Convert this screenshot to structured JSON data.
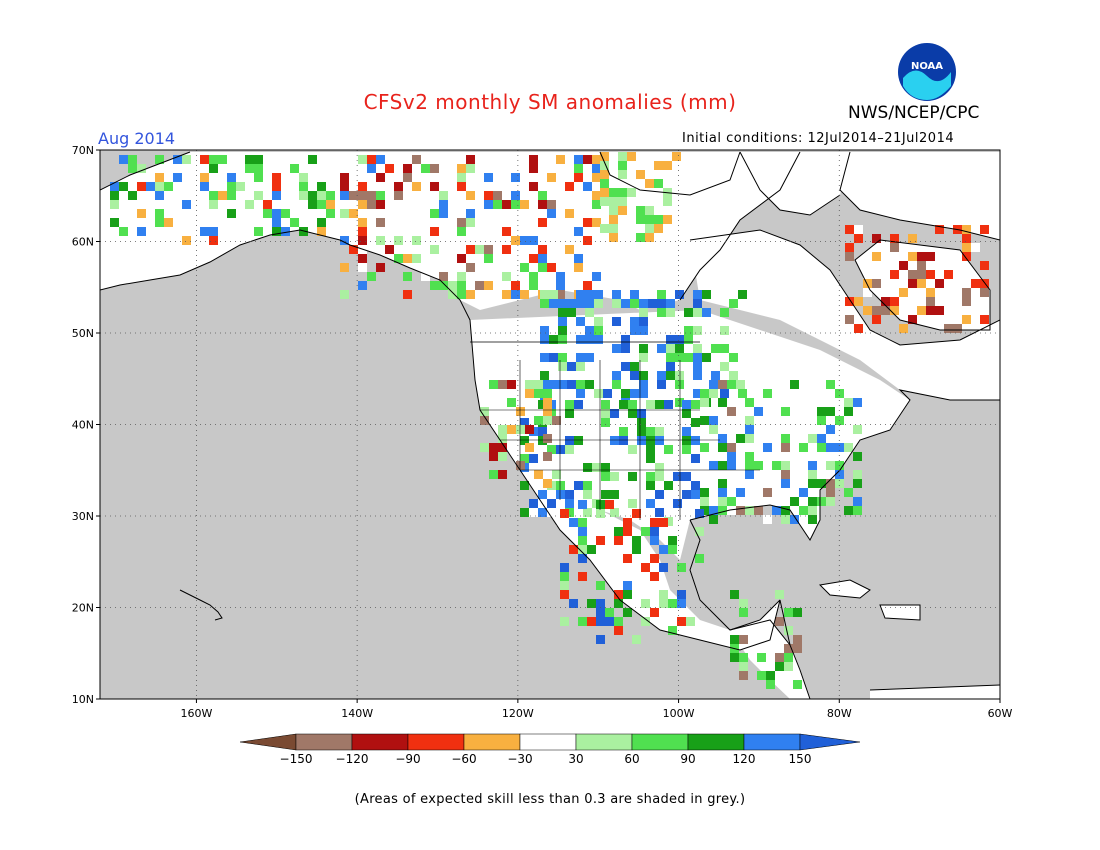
{
  "title": "CFSv2 monthly SM anomalies (mm)",
  "agency": "NWS/NCEP/CPC",
  "logo_text": "NOAA",
  "period_label": "Aug 2014",
  "initial_conditions": "Initial conditions: 12Jul2014–21Jul2014",
  "footnote": "(Areas of expected skill less than 0.3 are shaded in grey.)",
  "map": {
    "lon_range": [
      -172,
      -60
    ],
    "lat_range": [
      10,
      70
    ],
    "lat_ticks": [
      {
        "value": 70,
        "label": "70N"
      },
      {
        "value": 60,
        "label": "60N"
      },
      {
        "value": 50,
        "label": "50N"
      },
      {
        "value": 40,
        "label": "40N"
      },
      {
        "value": 30,
        "label": "30N"
      },
      {
        "value": 20,
        "label": "20N"
      },
      {
        "value": 10,
        "label": "10N"
      }
    ],
    "lon_ticks": [
      {
        "value": -160,
        "label": "160W"
      },
      {
        "value": -140,
        "label": "140W"
      },
      {
        "value": -120,
        "label": "120W"
      },
      {
        "value": -100,
        "label": "100W"
      },
      {
        "value": -80,
        "label": "80W"
      },
      {
        "value": -60,
        "label": "60W"
      }
    ],
    "no_skill_color": "#c8c8c8",
    "land_outline_color": "#000000"
  },
  "colorbar": {
    "labels": [
      "−150",
      "−120",
      "−90",
      "−60",
      "−30",
      "30",
      "60",
      "90",
      "120",
      "150"
    ],
    "colors": [
      "#7a4a32",
      "#a07868",
      "#b01010",
      "#f03010",
      "#f8b040",
      "#ffffff",
      "#aaf0a0",
      "#50e050",
      "#18a018",
      "#3080f0",
      "#2060d8"
    ]
  },
  "icons": {
    "logo": "noaa-logo"
  }
}
